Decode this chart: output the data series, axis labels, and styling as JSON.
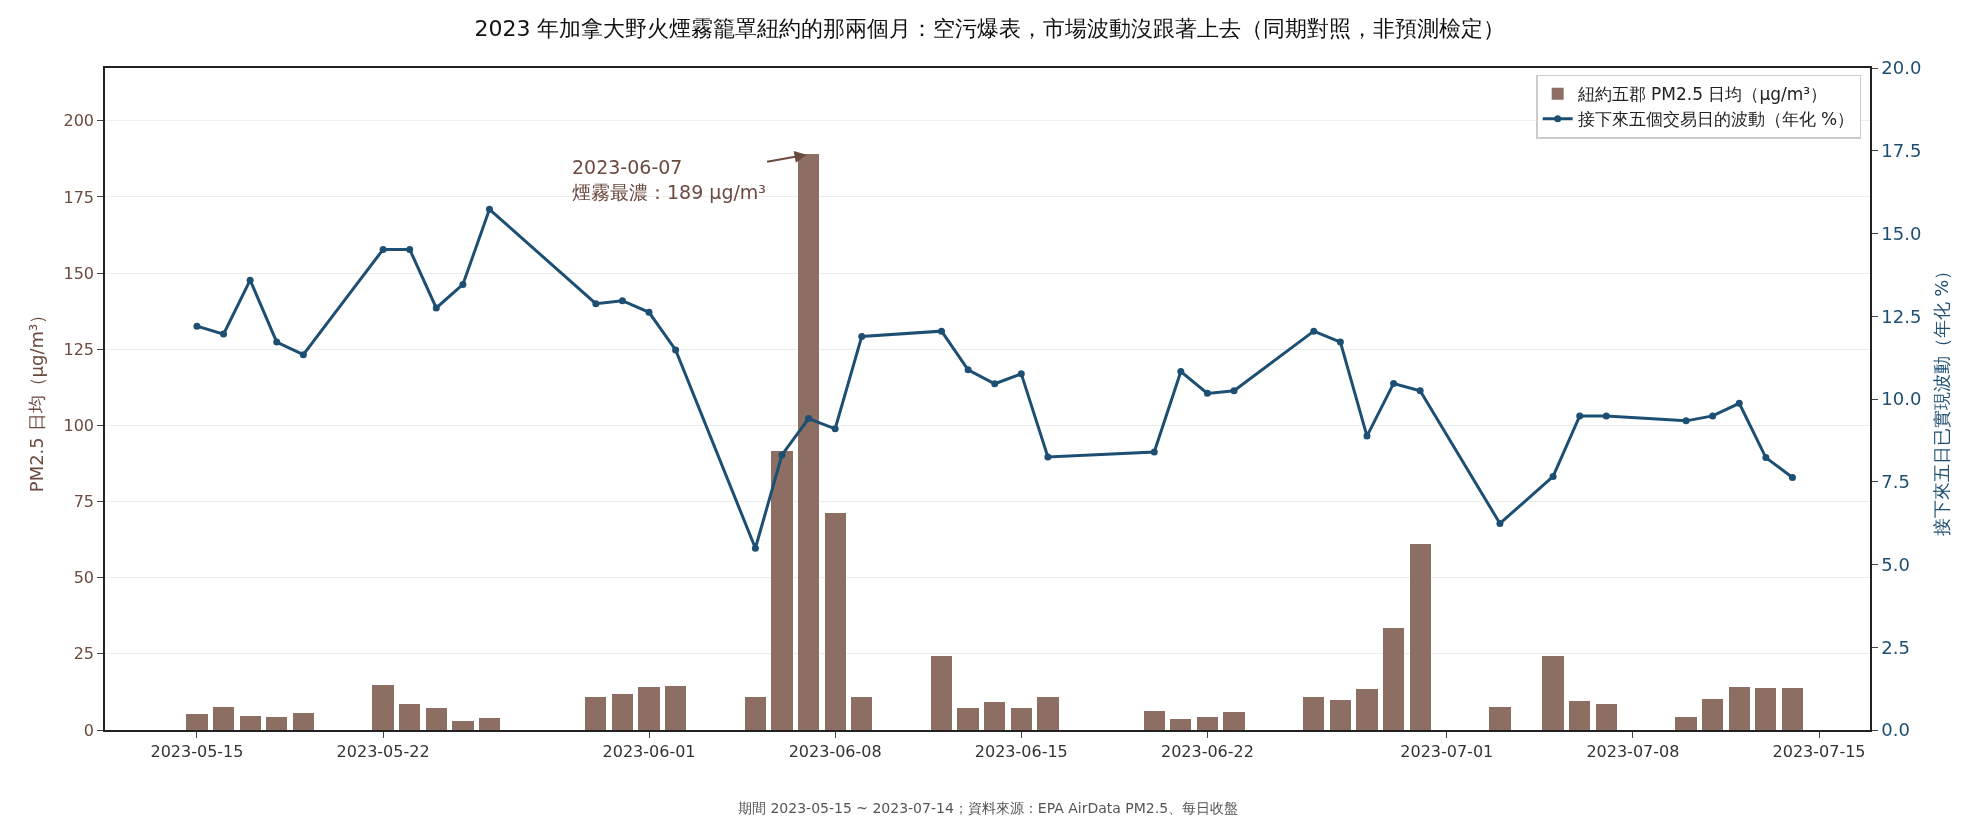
{
  "chart_data": {
    "type": "bar",
    "title": "2023 年加拿大野火煙霧籠罩紐約的那兩個月：空污爆表，市場波動沒跟著上去（同期對照，非預測檢定）",
    "ylabel": "PM2.5 日均（μg/m³）",
    "y2label": "接下來五日已實現波動（年化 %）",
    "x": [
      "2023-05-15",
      "2023-05-16",
      "2023-05-17",
      "2023-05-18",
      "2023-05-19",
      "2023-05-22",
      "2023-05-23",
      "2023-05-24",
      "2023-05-25",
      "2023-05-26",
      "2023-05-30",
      "2023-05-31",
      "2023-06-01",
      "2023-06-02",
      "2023-06-05",
      "2023-06-06",
      "2023-06-07",
      "2023-06-08",
      "2023-06-09",
      "2023-06-12",
      "2023-06-13",
      "2023-06-14",
      "2023-06-15",
      "2023-06-16",
      "2023-06-20",
      "2023-06-21",
      "2023-06-22",
      "2023-06-23",
      "2023-06-26",
      "2023-06-27",
      "2023-06-28",
      "2023-06-29",
      "2023-06-30",
      "2023-07-03",
      "2023-07-05",
      "2023-07-06",
      "2023-07-07",
      "2023-07-10",
      "2023-07-11",
      "2023-07-12",
      "2023-07-13",
      "2023-07-14"
    ],
    "series": [
      {
        "name": "紐約五郡 PM2.5 日均（μg/m³）",
        "color": "#8c6e62",
        "values": [
          5.2,
          7.4,
          4.5,
          4.2,
          5.5,
          14.8,
          8.4,
          7.1,
          2.9,
          3.9,
          10.7,
          11.9,
          14.1,
          14.5,
          10.7,
          91.7,
          189,
          71.4,
          10.9,
          24.4,
          7.1,
          9.1,
          7.1,
          10.7,
          6.1,
          3.5,
          4.2,
          5.8,
          10.9,
          9.7,
          13.5,
          33.4,
          61.0,
          7.4,
          24.4,
          9.4,
          8.7,
          4.2,
          10.2,
          14.1,
          13.8,
          13.8
        ]
      },
      {
        "name": "接下來五個交易日的波動（年化 %）",
        "type": "line",
        "axis": "y2",
        "color": "#1d4f73",
        "marker": "circle",
        "line_style": "solid",
        "values": [
          12.2,
          11.96,
          13.59,
          11.72,
          11.34,
          14.52,
          14.52,
          12.75,
          13.46,
          15.73,
          12.88,
          12.97,
          12.62,
          11.48,
          5.49,
          8.31,
          9.41,
          9.1,
          11.89,
          12.05,
          10.88,
          10.46,
          10.76,
          8.25,
          8.4,
          10.83,
          10.17,
          10.25,
          12.05,
          11.72,
          8.88,
          10.47,
          10.25,
          6.24,
          7.66,
          9.49,
          9.49,
          9.34,
          9.49,
          9.87,
          8.23,
          7.63
        ]
      }
    ],
    "xlim": [
      "2023-05-11T13:00",
      "2023-07-16T22:00"
    ],
    "xticks": [
      "2023-05-15",
      "2023-05-22",
      "2023-06-01",
      "2023-06-08",
      "2023-06-15",
      "2023-06-22",
      "2023-07-01",
      "2023-07-08",
      "2023-07-15"
    ],
    "ylim": [
      0,
      217.35
    ],
    "yticks": [
      0,
      25,
      50,
      75,
      100,
      125,
      150,
      175,
      200
    ],
    "y2lim": [
      0,
      20
    ],
    "y2ticks": [
      {
        "value": 0,
        "label": "0.0"
      },
      {
        "value": 2.5,
        "label": "2.5"
      },
      {
        "value": 5,
        "label": "5.0"
      },
      {
        "value": 7.5,
        "label": "7.5"
      },
      {
        "value": 10,
        "label": "10.0"
      },
      {
        "value": 12.5,
        "label": "12.5"
      },
      {
        "value": 15,
        "label": "15.0"
      },
      {
        "value": 17.5,
        "label": "17.5"
      },
      {
        "value": 20,
        "label": "20.0"
      }
    ],
    "annotations": [
      {
        "text": "2023-06-07\n煙霧最濃：189 μg/m³",
        "x": "2023-06-07",
        "y": 189
      },
      "期間 2023-05-15 ~ 2023-07-14；資料來源：EPA AirData PM2.5、每日收盤"
    ],
    "grid": "y",
    "legend": "top right"
  }
}
